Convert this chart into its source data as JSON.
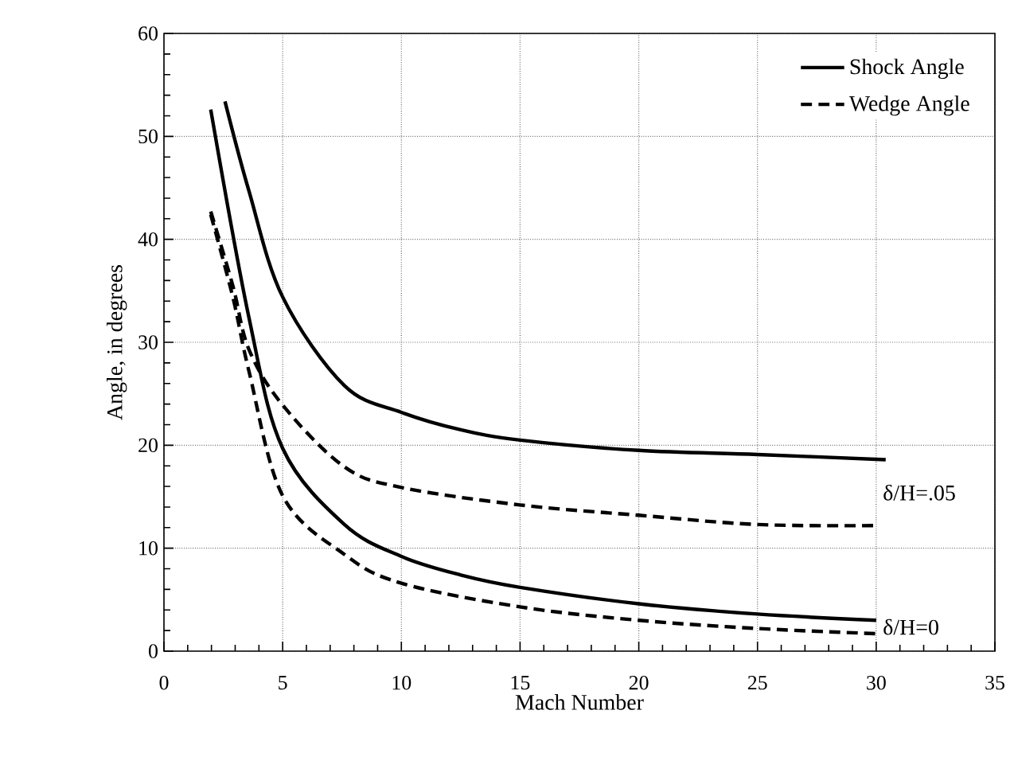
{
  "chart_data": {
    "type": "line",
    "xlabel": "Mach Number",
    "ylabel": "Angle, in degrees",
    "xlim": [
      0,
      35
    ],
    "xticks": [
      0,
      5,
      10,
      15,
      20,
      25,
      30,
      35
    ],
    "ylim": [
      0,
      60
    ],
    "yticks": [
      0,
      10,
      20,
      30,
      40,
      50,
      60
    ],
    "grid": true,
    "legend": "top right",
    "marker": "none",
    "series": [
      {
        "name": "Shock Angle",
        "color": "#000000",
        "line_style": "solid",
        "x": [
          2.57,
          3.58,
          5,
          7.6,
          10,
          12.5,
          15,
          20,
          25,
          30.4
        ],
        "values": [
          53.4,
          44.7,
          34.4,
          25.8,
          23.2,
          21.5,
          20.5,
          19.5,
          19.1,
          18.6
        ]
      },
      {
        "name": "Wedge Angle",
        "color": "#000000",
        "line_style": "dashed",
        "x": [
          1.97,
          2.9,
          3.58,
          5,
          7.6,
          10,
          15,
          20,
          25,
          30
        ],
        "values": [
          42.7,
          35.5,
          29.3,
          23.9,
          17.9,
          15.9,
          14.2,
          13.2,
          12.3,
          12.2
        ]
      },
      {
        "color": "#000000",
        "line_style": "solid",
        "x": [
          1.97,
          3.58,
          5,
          7.6,
          10,
          12.5,
          15,
          20,
          25,
          30
        ],
        "values": [
          52.6,
          32.4,
          19.7,
          12.3,
          9.2,
          7.4,
          6.2,
          4.6,
          3.6,
          3.0
        ]
      },
      {
        "color": "#000000",
        "line_style": "dashed",
        "x": [
          1.97,
          2.9,
          3.58,
          5,
          7.6,
          10,
          15,
          20,
          25,
          30
        ],
        "values": [
          42.4,
          34.4,
          27.2,
          15.1,
          9.4,
          6.6,
          4.3,
          3.0,
          2.2,
          1.7
        ]
      }
    ],
    "annotations": [
      "δ/H=.05",
      "δ/H=0"
    ]
  }
}
